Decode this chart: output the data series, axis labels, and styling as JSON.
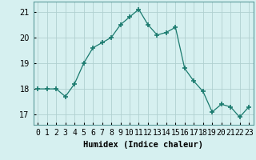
{
  "x": [
    0,
    1,
    2,
    3,
    4,
    5,
    6,
    7,
    8,
    9,
    10,
    11,
    12,
    13,
    14,
    15,
    16,
    17,
    18,
    19,
    20,
    21,
    22,
    23
  ],
  "y": [
    18.0,
    18.0,
    18.0,
    17.7,
    18.2,
    19.0,
    19.6,
    19.8,
    20.0,
    20.5,
    20.8,
    21.1,
    20.5,
    20.1,
    20.2,
    20.4,
    18.8,
    18.3,
    17.9,
    17.1,
    17.4,
    17.3,
    16.9,
    17.3
  ],
  "line_color": "#1a7a6e",
  "marker": "+",
  "marker_size": 5,
  "marker_lw": 1.2,
  "bg_color": "#d6f0f0",
  "grid_color": "#b0d0d0",
  "xlabel": "Humidex (Indice chaleur)",
  "xlim": [
    -0.5,
    23.5
  ],
  "ylim": [
    16.6,
    21.4
  ],
  "yticks": [
    17,
    18,
    19,
    20,
    21
  ],
  "xtick_labels": [
    "0",
    "1",
    "2",
    "3",
    "4",
    "5",
    "6",
    "7",
    "8",
    "9",
    "10",
    "11",
    "12",
    "13",
    "14",
    "15",
    "16",
    "17",
    "18",
    "19",
    "20",
    "21",
    "22",
    "23"
  ],
  "label_fontsize": 7.5,
  "tick_fontsize": 7
}
